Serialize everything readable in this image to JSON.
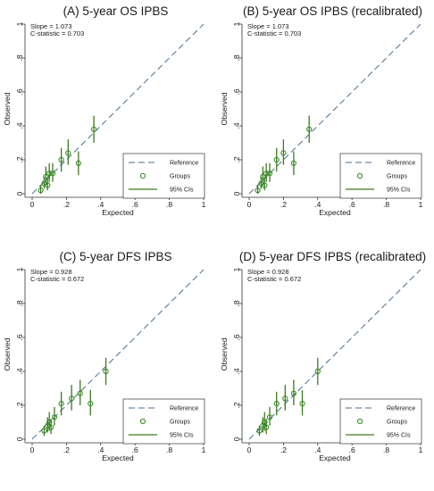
{
  "chart_data": [
    {
      "type": "scatter",
      "title": "(A) 5-year OS IPBS",
      "stats": [
        "Slope = 1.073",
        "C-statistic = 0.703"
      ],
      "xlabel": "Expected",
      "ylabel": "Observed",
      "xlim": [
        0,
        1
      ],
      "ylim": [
        0,
        1
      ],
      "xticks": [
        "0",
        ".2",
        ".4",
        ".6",
        ".8",
        "1"
      ],
      "yticks": [
        "0",
        ".2",
        ".4",
        ".6",
        ".8",
        "1"
      ],
      "legend": [
        "Reference",
        "Groups",
        "95% CIs"
      ],
      "legend_position": "bottom-right",
      "grid": false,
      "colors": {
        "reference": "#4a6f8f",
        "groups": "#2e8b1e",
        "ci": "#3d7a1e"
      },
      "points": [
        {
          "x": 0.05,
          "y": 0.02,
          "lo": 0.0,
          "hi": 0.05
        },
        {
          "x": 0.07,
          "y": 0.06,
          "lo": 0.03,
          "hi": 0.1
        },
        {
          "x": 0.08,
          "y": 0.1,
          "lo": 0.05,
          "hi": 0.16
        },
        {
          "x": 0.09,
          "y": 0.05,
          "lo": 0.02,
          "hi": 0.1
        },
        {
          "x": 0.1,
          "y": 0.12,
          "lo": 0.07,
          "hi": 0.18
        },
        {
          "x": 0.12,
          "y": 0.12,
          "lo": 0.07,
          "hi": 0.18
        },
        {
          "x": 0.17,
          "y": 0.2,
          "lo": 0.13,
          "hi": 0.27
        },
        {
          "x": 0.21,
          "y": 0.24,
          "lo": 0.17,
          "hi": 0.32
        },
        {
          "x": 0.27,
          "y": 0.18,
          "lo": 0.11,
          "hi": 0.25
        },
        {
          "x": 0.36,
          "y": 0.38,
          "lo": 0.3,
          "hi": 0.46
        }
      ]
    },
    {
      "type": "scatter",
      "title": "(B) 5-year OS IPBS (recalibrated)",
      "stats": [
        "Slope = 1.073",
        "C-statistic = 0.703"
      ],
      "xlabel": "Expected",
      "ylabel": "Observed",
      "xlim": [
        0,
        1
      ],
      "ylim": [
        0,
        1
      ],
      "xticks": [
        "0",
        ".2",
        ".4",
        ".6",
        ".8",
        "1"
      ],
      "yticks": [
        "0",
        ".2",
        ".4",
        ".6",
        ".8",
        "1"
      ],
      "legend": [
        "Reference",
        "Groups",
        "95% CIs"
      ],
      "legend_position": "bottom-right",
      "grid": false,
      "colors": {
        "reference": "#4a6f8f",
        "groups": "#2e8b1e",
        "ci": "#3d7a1e"
      },
      "points": [
        {
          "x": 0.05,
          "y": 0.02,
          "lo": 0.0,
          "hi": 0.05
        },
        {
          "x": 0.07,
          "y": 0.06,
          "lo": 0.03,
          "hi": 0.1
        },
        {
          "x": 0.08,
          "y": 0.1,
          "lo": 0.05,
          "hi": 0.16
        },
        {
          "x": 0.09,
          "y": 0.05,
          "lo": 0.02,
          "hi": 0.1
        },
        {
          "x": 0.1,
          "y": 0.12,
          "lo": 0.07,
          "hi": 0.18
        },
        {
          "x": 0.12,
          "y": 0.12,
          "lo": 0.07,
          "hi": 0.18
        },
        {
          "x": 0.16,
          "y": 0.2,
          "lo": 0.13,
          "hi": 0.27
        },
        {
          "x": 0.2,
          "y": 0.24,
          "lo": 0.17,
          "hi": 0.32
        },
        {
          "x": 0.26,
          "y": 0.18,
          "lo": 0.11,
          "hi": 0.25
        },
        {
          "x": 0.35,
          "y": 0.38,
          "lo": 0.3,
          "hi": 0.46
        }
      ]
    },
    {
      "type": "scatter",
      "title": "(C) 5-year DFS IPBS",
      "stats": [
        "Slope = 0.928",
        "C-statistic = 0.672"
      ],
      "xlabel": "Expected",
      "ylabel": "Observed",
      "xlim": [
        0,
        1
      ],
      "ylim": [
        0,
        1
      ],
      "xticks": [
        "0",
        ".2",
        ".4",
        ".6",
        ".8",
        "1"
      ],
      "yticks": [
        "0",
        ".2",
        ".4",
        ".6",
        ".8",
        "1"
      ],
      "legend": [
        "Reference",
        "Groups",
        "95% CIs"
      ],
      "legend_position": "bottom-right",
      "grid": false,
      "colors": {
        "reference": "#4a6f8f",
        "groups": "#2e8b1e",
        "ci": "#3d7a1e"
      },
      "points": [
        {
          "x": 0.07,
          "y": 0.05,
          "lo": 0.02,
          "hi": 0.08
        },
        {
          "x": 0.09,
          "y": 0.08,
          "lo": 0.04,
          "hi": 0.13
        },
        {
          "x": 0.1,
          "y": 0.1,
          "lo": 0.05,
          "hi": 0.16
        },
        {
          "x": 0.11,
          "y": 0.07,
          "lo": 0.03,
          "hi": 0.12
        },
        {
          "x": 0.13,
          "y": 0.13,
          "lo": 0.08,
          "hi": 0.19
        },
        {
          "x": 0.17,
          "y": 0.21,
          "lo": 0.14,
          "hi": 0.28
        },
        {
          "x": 0.23,
          "y": 0.24,
          "lo": 0.17,
          "hi": 0.32
        },
        {
          "x": 0.28,
          "y": 0.27,
          "lo": 0.2,
          "hi": 0.35
        },
        {
          "x": 0.34,
          "y": 0.21,
          "lo": 0.14,
          "hi": 0.29
        },
        {
          "x": 0.43,
          "y": 0.4,
          "lo": 0.32,
          "hi": 0.48
        }
      ]
    },
    {
      "type": "scatter",
      "title": "(D) 5-year DFS IPBS (recalibrated)",
      "stats": [
        "Slope = 0.928",
        "C-statistic = 0.672"
      ],
      "xlabel": "Expected",
      "ylabel": "Observed",
      "xlim": [
        0,
        1
      ],
      "ylim": [
        0,
        1
      ],
      "xticks": [
        "0",
        ".2",
        ".4",
        ".6",
        ".8",
        "1"
      ],
      "yticks": [
        "0",
        ".2",
        ".4",
        ".6",
        ".8",
        "1"
      ],
      "legend": [
        "Reference",
        "Groups",
        "95% CIs"
      ],
      "legend_position": "bottom-right",
      "grid": false,
      "colors": {
        "reference": "#4a6f8f",
        "groups": "#2e8b1e",
        "ci": "#3d7a1e"
      },
      "points": [
        {
          "x": 0.06,
          "y": 0.05,
          "lo": 0.02,
          "hi": 0.08
        },
        {
          "x": 0.08,
          "y": 0.08,
          "lo": 0.04,
          "hi": 0.13
        },
        {
          "x": 0.09,
          "y": 0.1,
          "lo": 0.05,
          "hi": 0.16
        },
        {
          "x": 0.1,
          "y": 0.07,
          "lo": 0.03,
          "hi": 0.12
        },
        {
          "x": 0.12,
          "y": 0.13,
          "lo": 0.08,
          "hi": 0.19
        },
        {
          "x": 0.16,
          "y": 0.21,
          "lo": 0.14,
          "hi": 0.28
        },
        {
          "x": 0.21,
          "y": 0.24,
          "lo": 0.17,
          "hi": 0.32
        },
        {
          "x": 0.26,
          "y": 0.27,
          "lo": 0.2,
          "hi": 0.35
        },
        {
          "x": 0.31,
          "y": 0.21,
          "lo": 0.14,
          "hi": 0.29
        },
        {
          "x": 0.4,
          "y": 0.4,
          "lo": 0.32,
          "hi": 0.48
        }
      ]
    }
  ]
}
